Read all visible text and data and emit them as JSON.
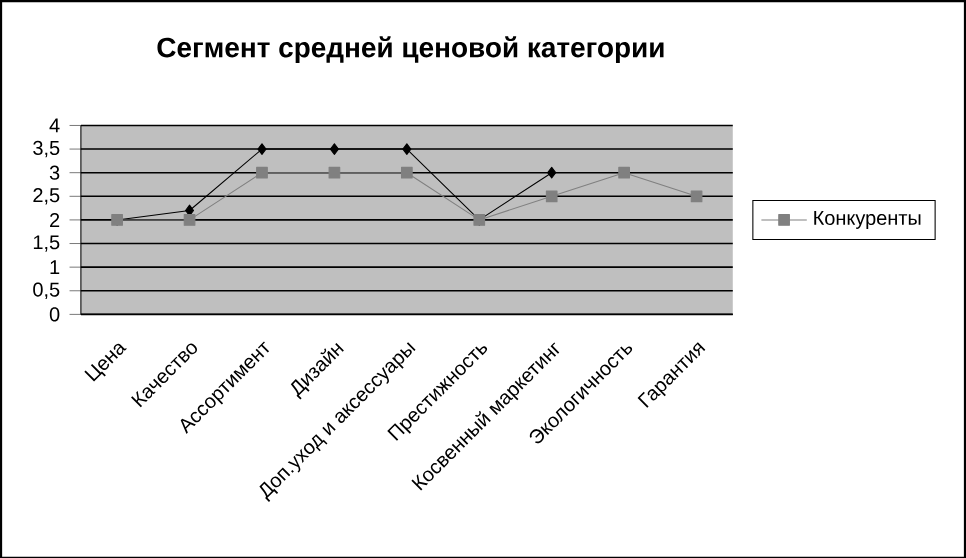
{
  "chart_data": {
    "type": "line",
    "title": "Сегмент средней ценовой категории",
    "categories": [
      "Цена",
      "Качество",
      "Ассортимент",
      "Дизайн",
      "Доп.уход и аксессуары",
      "Престижность",
      "Косвенный маркетинг",
      "Экологичность",
      "Гарантия"
    ],
    "series": [
      {
        "color": "#000000",
        "marker": "diamond",
        "values": [
          2,
          2.2,
          3.5,
          3.5,
          3.5,
          2,
          3,
          null,
          null
        ]
      },
      {
        "name": "Конкуренты",
        "color": "#808080",
        "marker": "square",
        "values": [
          2,
          2,
          3,
          3,
          3,
          2,
          2.5,
          3,
          2.5
        ]
      }
    ],
    "ylim": [
      0,
      4
    ],
    "yticks": [
      0,
      {
        "value": 0.5,
        "label": "0,5"
      },
      1,
      {
        "value": 1.5,
        "label": "1,5"
      },
      2,
      {
        "value": 2.5,
        "label": "2,5"
      },
      3,
      {
        "value": 3.5,
        "label": "3,5"
      },
      4
    ],
    "grid": "y",
    "legend": "right"
  }
}
